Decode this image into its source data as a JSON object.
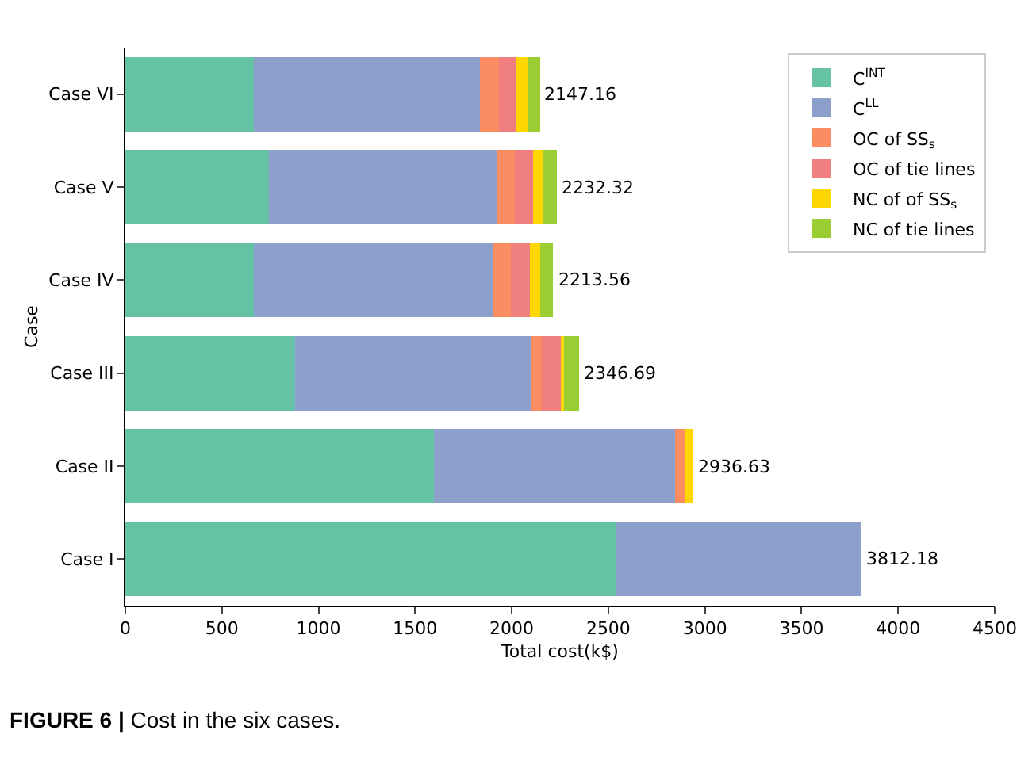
{
  "chart_data": {
    "type": "bar",
    "orientation": "horizontal",
    "stacked": true,
    "xlabel": "Total cost(k$)",
    "ylabel": "Case",
    "categories": [
      "Case VI",
      "Case V",
      "Case IV",
      "Case III",
      "Case II",
      "Case I"
    ],
    "series": [
      {
        "name": "C$^{INT}$",
        "color": "#66c2a5",
        "values": [
          666,
          745,
          666,
          878,
          1596,
          2541
        ]
      },
      {
        "name": "C$^{LL}$",
        "color": "#8da0cb",
        "values": [
          1169,
          1176,
          1236,
          1224,
          1250,
          1271.18
        ]
      },
      {
        "name": "OC of SS$_{s}$",
        "color": "#fc8d62",
        "values": [
          100,
          96,
          93,
          53,
          50,
          0
        ]
      },
      {
        "name": "OC of tie lines",
        "color": "#ef7f7f",
        "values": [
          90,
          95,
          99,
          99,
          0,
          0
        ]
      },
      {
        "name": "NC of of SS$_{s}$",
        "color": "#ffd700",
        "values": [
          55,
          48,
          53,
          18,
          40.63,
          0
        ]
      },
      {
        "name": "NC of tie lines",
        "color": "#9acd32",
        "values": [
          67.16,
          72.32,
          66.56,
          74.69,
          0,
          0
        ]
      }
    ],
    "totals": [
      "2147.16",
      "2232.32",
      "2213.56",
      "2346.69",
      "2936.63",
      "3812.18"
    ],
    "xlim": [
      0,
      4500
    ],
    "xticks": [
      0,
      500,
      1000,
      1500,
      2000,
      2500,
      3000,
      3500,
      4000,
      4500
    ],
    "legend": "top right",
    "annotations": [
      "FIGURE 6 | Cost in the six cases."
    ]
  }
}
